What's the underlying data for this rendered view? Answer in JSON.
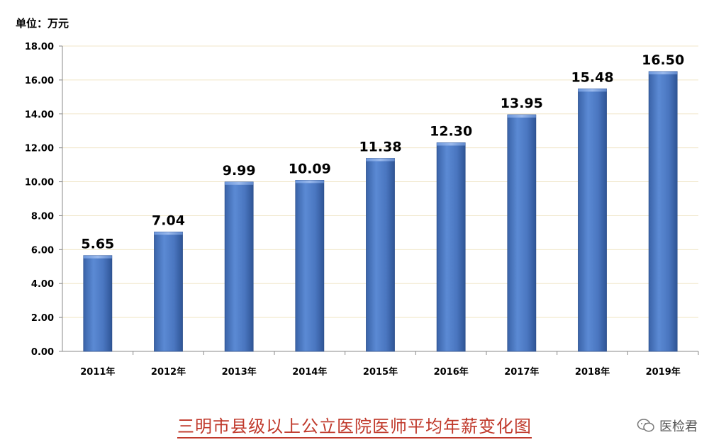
{
  "unit_label": "单位：万元",
  "footer": {
    "title": "三明市县级以上公立医院医师平均年薪变化图",
    "watermark_text": "医检君"
  },
  "chart_data": {
    "type": "bar",
    "categories": [
      "2011年",
      "2012年",
      "2013年",
      "2014年",
      "2015年",
      "2016年",
      "2017年",
      "2018年",
      "2019年"
    ],
    "values": [
      5.65,
      7.04,
      9.99,
      10.09,
      11.38,
      12.3,
      13.95,
      15.48,
      16.5
    ],
    "value_labels": [
      "5.65",
      "7.04",
      "9.99",
      "10.09",
      "11.38",
      "12.30",
      "13.95",
      "15.48",
      "16.50"
    ],
    "yticks": [
      "0.00",
      "2.00",
      "4.00",
      "6.00",
      "8.00",
      "10.00",
      "12.00",
      "14.00",
      "16.00",
      "18.00"
    ],
    "ylim": [
      0,
      18
    ],
    "grid": true,
    "bar_color": "#4a7cc7"
  }
}
